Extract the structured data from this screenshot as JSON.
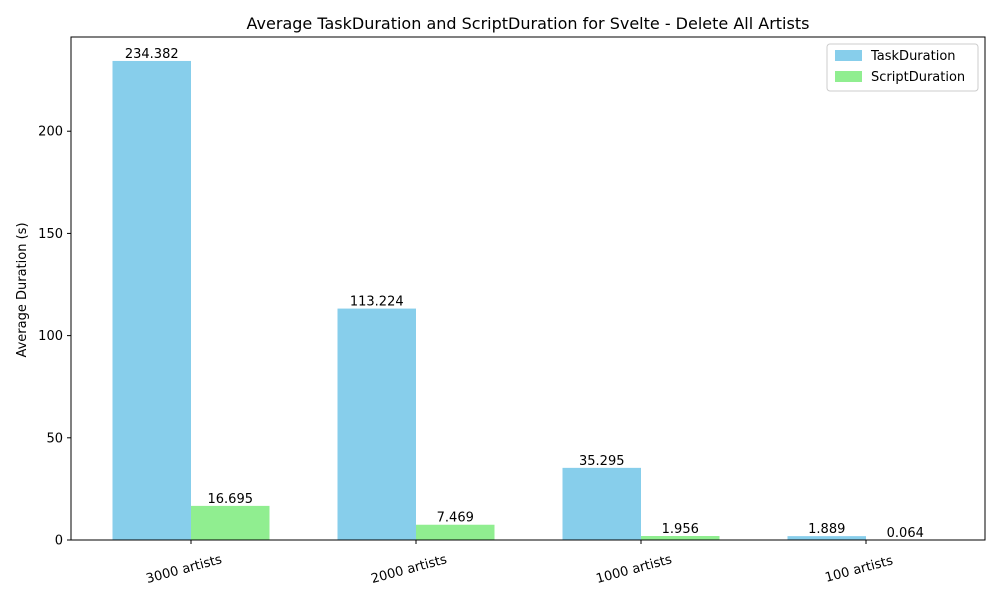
{
  "chart_data": {
    "type": "bar",
    "title": "Average TaskDuration and ScriptDuration for Svelte - Delete All Artists",
    "xlabel": "",
    "ylabel": "Average Duration (s)",
    "categories": [
      "3000 artists",
      "2000 artists",
      "1000 artists",
      "100 artists"
    ],
    "series": [
      {
        "name": "TaskDuration",
        "values": [
          234.382,
          113.224,
          35.295,
          1.889
        ],
        "labels": [
          "234.382",
          "113.224",
          "35.295",
          "1.889"
        ],
        "color": "#87CEEB"
      },
      {
        "name": "ScriptDuration",
        "values": [
          16.695,
          7.469,
          1.956,
          0.064
        ],
        "labels": [
          "16.695",
          "7.469",
          "1.956",
          "0.064"
        ],
        "color": "#90EE90"
      }
    ],
    "ylim": [
      0,
      246.1
    ],
    "yticks": [
      0,
      50,
      100,
      150,
      200
    ],
    "ytick_labels": [
      "0",
      "50",
      "100",
      "150",
      "200"
    ],
    "grid": false,
    "legend": "top-right"
  }
}
